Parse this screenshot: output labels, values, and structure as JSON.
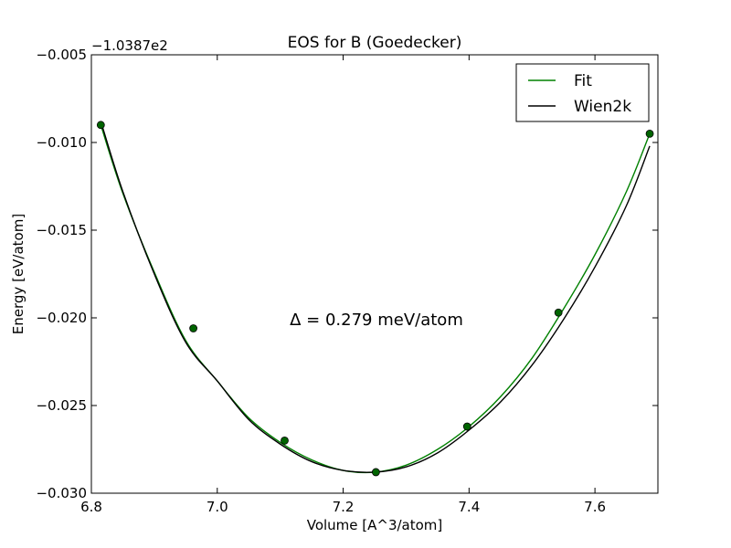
{
  "chart_data": {
    "type": "line",
    "title": "EOS for B (Goedecker)",
    "xlabel": "Volume [A^3/atom]",
    "ylabel": "Energy [eV/atom]",
    "y_offset_label": "−1.0387e2",
    "annotation": "Δ = 0.279 meV/atom",
    "xlim": [
      6.8,
      7.7
    ],
    "ylim": [
      -0.03,
      -0.005
    ],
    "x_ticks": [
      6.8,
      7.0,
      7.2,
      7.4,
      7.6
    ],
    "x_tick_labels": [
      "6.8",
      "7.0",
      "7.2",
      "7.4",
      "7.6"
    ],
    "y_ticks": [
      -0.005,
      -0.01,
      -0.015,
      -0.02,
      -0.025,
      -0.03
    ],
    "y_tick_labels": [
      "−0.005",
      "−0.010",
      "−0.015",
      "−0.020",
      "−0.025",
      "−0.030"
    ],
    "legend_position": "top-right",
    "series": [
      {
        "name": "Fit",
        "color": "#008000",
        "kind": "line",
        "x": [
          6.815,
          6.85,
          6.9,
          6.95,
          7.0,
          7.05,
          7.1,
          7.15,
          7.2,
          7.25,
          7.3,
          7.35,
          7.4,
          7.45,
          7.5,
          7.55,
          7.6,
          7.65,
          7.687
        ],
        "y": [
          -0.009,
          -0.0129,
          -0.0174,
          -0.0213,
          -0.0236,
          -0.0257,
          -0.0271,
          -0.0281,
          -0.0287,
          -0.0288,
          -0.0284,
          -0.0275,
          -0.0262,
          -0.0245,
          -0.0223,
          -0.0195,
          -0.0164,
          -0.0128,
          -0.0095
        ]
      },
      {
        "name": "Wien2k",
        "color": "#000000",
        "kind": "line",
        "x": [
          6.815,
          6.85,
          6.9,
          6.95,
          7.0,
          7.05,
          7.1,
          7.15,
          7.2,
          7.25,
          7.3,
          7.35,
          7.4,
          7.45,
          7.5,
          7.55,
          7.6,
          7.65,
          7.687
        ],
        "y": [
          -0.0088,
          -0.0128,
          -0.0175,
          -0.0214,
          -0.0236,
          -0.0258,
          -0.0272,
          -0.0282,
          -0.0287,
          -0.0288,
          -0.0285,
          -0.0277,
          -0.0264,
          -0.0248,
          -0.0227,
          -0.0201,
          -0.0171,
          -0.0136,
          -0.0102
        ]
      },
      {
        "name": "",
        "color": "#006400",
        "kind": "points",
        "x": [
          6.815,
          6.962,
          7.107,
          7.252,
          7.397,
          7.542,
          7.687
        ],
        "y": [
          -0.009,
          -0.0206,
          -0.027,
          -0.0288,
          -0.0262,
          -0.0197,
          -0.0095
        ]
      }
    ]
  }
}
